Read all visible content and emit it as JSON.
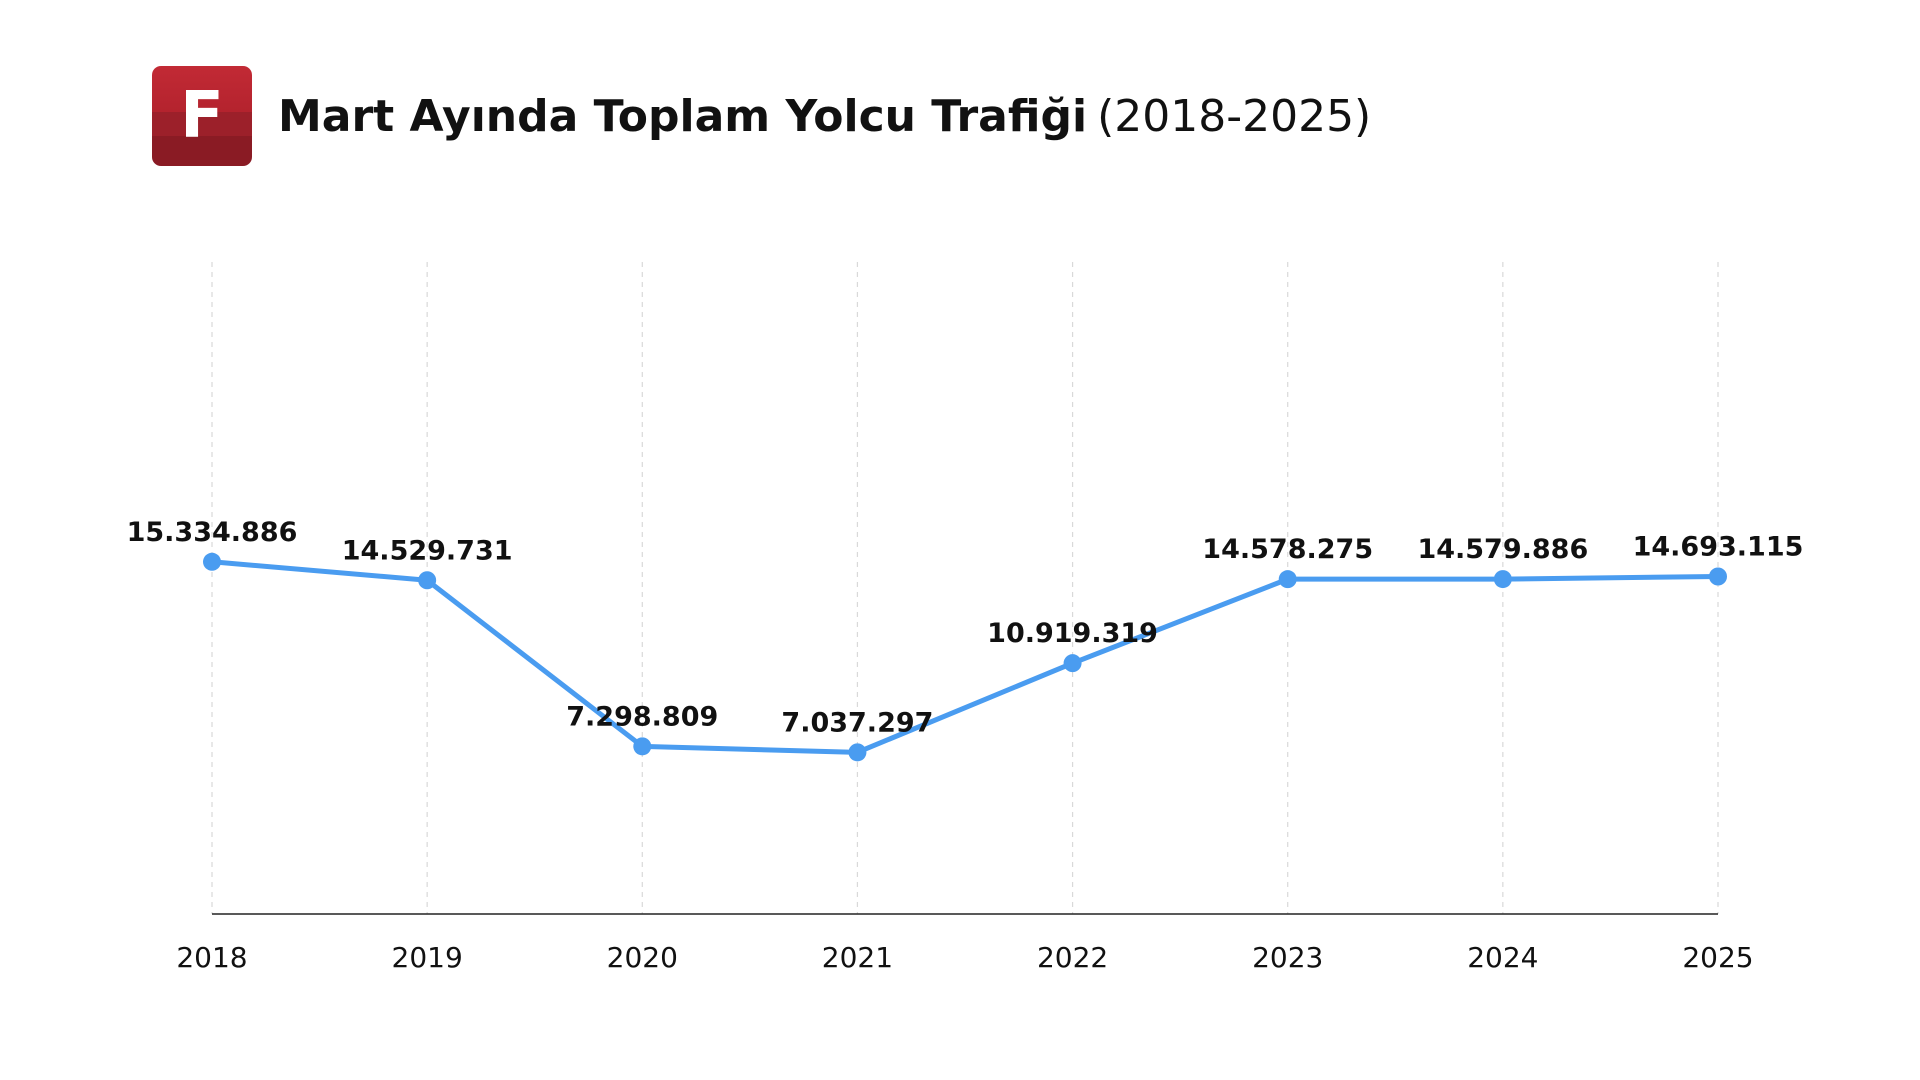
{
  "header": {
    "logo_letter": "F",
    "title_main": "Mart Ayında Toplam Yolcu Trafiği",
    "title_sub": "(2018-2025)"
  },
  "colors": {
    "line": "#4a9cf0",
    "point": "#4a9cf0",
    "grid": "#d9d9d9",
    "axis": "#222222",
    "logo": "#b4232e"
  },
  "chart_data": {
    "type": "line",
    "title": "Mart Ayında Toplam Yolcu Trafiği (2018-2025)",
    "xlabel": "",
    "ylabel": "",
    "x": [
      "2018",
      "2019",
      "2020",
      "2021",
      "2022",
      "2023",
      "2024",
      "2025"
    ],
    "series": [
      {
        "values": [
          15334886,
          14529731,
          7298809,
          7037297,
          10919319,
          14578275,
          14579886,
          14693115
        ],
        "labels": [
          "15.334.886",
          "14.529.731",
          "7.298.809",
          "7.037.297",
          "10.919.319",
          "14.578.275",
          "14.579.886",
          "14.693.115"
        ]
      }
    ],
    "ylim": [
      0,
      32000000
    ],
    "grid": "vertical dashed",
    "legend": "none"
  }
}
